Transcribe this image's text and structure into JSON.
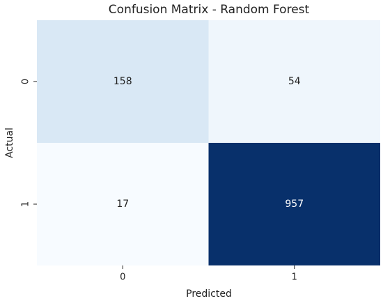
{
  "chart_data": {
    "type": "heatmap",
    "title": "Confusion Matrix - Random Forest",
    "xlabel": "Predicted",
    "ylabel": "Actual",
    "x_categories": [
      "0",
      "1"
    ],
    "y_categories": [
      "0",
      "1"
    ],
    "values": [
      [
        158,
        54
      ],
      [
        17,
        957
      ]
    ],
    "colormap": "Blues"
  }
}
